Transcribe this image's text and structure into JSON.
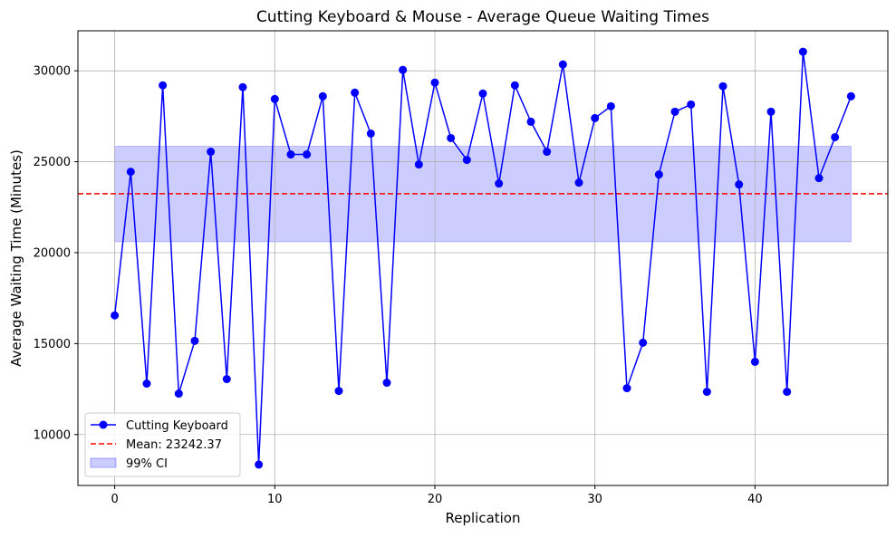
{
  "chart_data": {
    "type": "line",
    "title": "Cutting Keyboard & Mouse - Average Queue Waiting Times",
    "xlabel": "Replication",
    "ylabel": "Average Waiting Time (Minutes)",
    "xlim": [
      -2.3,
      48.3
    ],
    "ylim": [
      7200,
      32200
    ],
    "xticks": [
      0,
      10,
      20,
      30,
      40
    ],
    "yticks": [
      10000,
      15000,
      20000,
      25000,
      30000
    ],
    "grid": true,
    "legend_position": "lower-left",
    "series": [
      {
        "name": "Cutting Keyboard",
        "color": "#0000ff",
        "x": [
          0,
          1,
          2,
          3,
          4,
          5,
          6,
          7,
          8,
          9,
          10,
          11,
          12,
          13,
          14,
          15,
          16,
          17,
          18,
          19,
          20,
          21,
          22,
          23,
          24,
          25,
          26,
          27,
          28,
          29,
          30,
          31,
          32,
          33,
          34,
          35,
          36,
          37,
          38,
          39,
          40,
          41,
          42,
          43,
          44,
          45,
          46
        ],
        "y": [
          16550,
          24450,
          12800,
          29200,
          12250,
          15150,
          25550,
          13050,
          29100,
          8350,
          28450,
          25400,
          25400,
          28600,
          12400,
          28800,
          26550,
          12850,
          30050,
          24850,
          29350,
          26300,
          25100,
          28750,
          23800,
          29200,
          27200,
          25550,
          30350,
          23850,
          27400,
          28050,
          12550,
          15050,
          24300,
          27750,
          28150,
          12350,
          29150,
          23750,
          14000,
          27750,
          12350,
          31050,
          24100,
          26350,
          28600
        ]
      }
    ],
    "mean_line": {
      "label": "Mean: 23242.37",
      "value": 23242.37,
      "color": "#ff0000"
    },
    "ci_band": {
      "label": "99% CI",
      "lower": 20600,
      "upper": 25850,
      "x_start": 0,
      "x_end": 46,
      "color": "#0000ff"
    }
  }
}
